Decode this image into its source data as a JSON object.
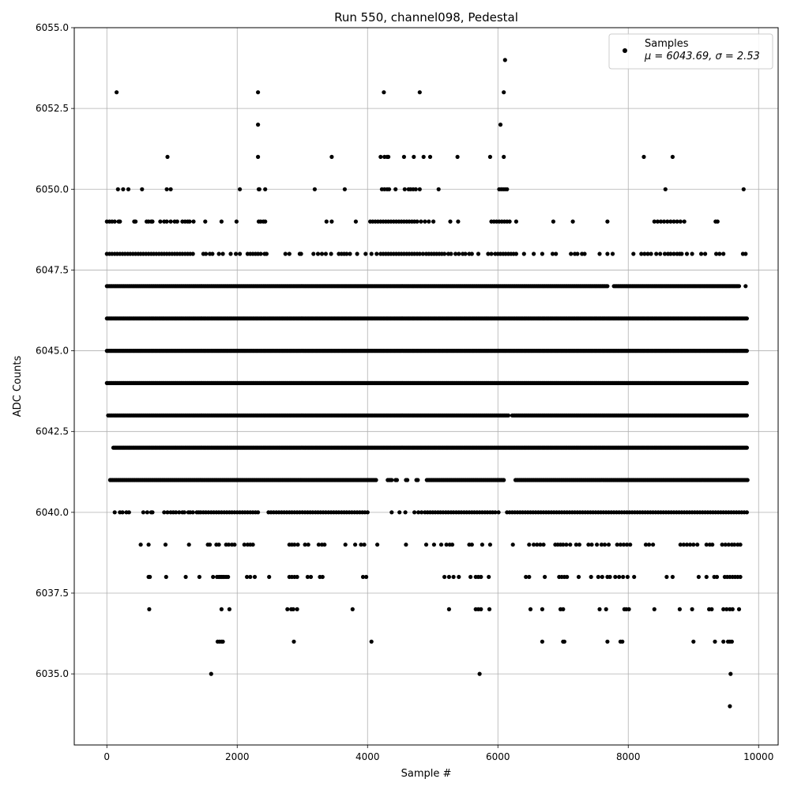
{
  "chart_data": {
    "type": "scatter",
    "title": "Run 550, channel098, Pedestal",
    "xlabel": "Sample #",
    "ylabel": "ADC Counts",
    "xlim": [
      -500,
      10300
    ],
    "ylim": [
      6032.8,
      6055.0
    ],
    "xticks": [
      0,
      2000,
      4000,
      6000,
      8000,
      10000
    ],
    "xtick_labels": [
      "0",
      "2000",
      "4000",
      "6000",
      "8000",
      "10000"
    ],
    "yticks": [
      6035.0,
      6037.5,
      6040.0,
      6042.5,
      6045.0,
      6047.5,
      6050.0,
      6052.5,
      6055.0
    ],
    "ytick_labels": [
      "6035.0",
      "6037.5",
      "6040.0",
      "6042.5",
      "6045.0",
      "6047.5",
      "6050.0",
      "6052.5",
      "6055.0"
    ],
    "grid": true,
    "marker_color": "#000000",
    "legend": {
      "position": "top-right",
      "entries": [
        {
          "marker": "dot",
          "line1": "Samples",
          "line2": "μ = 6043.69, σ = 2.53"
        }
      ]
    },
    "series": [
      {
        "name": "Samples",
        "bands": [
          {
            "y": 6034,
            "x": [
              9560
            ]
          },
          {
            "y": 6035,
            "x": [
              1600,
              5720,
              9570
            ]
          },
          {
            "y": 6036,
            "x": [
              1700,
              1730,
              1760,
              1780,
              2870,
              4060,
              6680,
              7000,
              7020,
              7680,
              7880,
              7910,
              9000,
              9330,
              9460,
              9530,
              9560,
              9590
            ]
          },
          {
            "y": 6037,
            "x": [
              650,
              1760,
              1880,
              2770,
              2830,
              2860,
              2920,
              3770,
              5250,
              5660,
              5700,
              5740,
              5870,
              6500,
              6680,
              6960,
              7000,
              7560,
              7660,
              7940,
              7970,
              8010,
              8400,
              8790,
              8980,
              9240,
              9280,
              9460,
              9510,
              9560,
              9600,
              9700
            ]
          },
          {
            "y": 6038,
            "x": [
              640,
              660,
              910,
              1210,
              1420,
              1630,
              1690,
              1720,
              1740,
              1760,
              1780,
              1800,
              1830,
              1860,
              2150,
              2200,
              2270,
              2490,
              2800,
              2840,
              2880,
              2920,
              3080,
              3130,
              3270,
              3310,
              3930,
              3980,
              5180,
              5250,
              5320,
              5400,
              5580,
              5660,
              5700,
              5740,
              5860,
              6430,
              6480,
              6720,
              6940,
              6980,
              7020,
              7060,
              7240,
              7430,
              7540,
              7600,
              7680,
              7720,
              7800,
              7860,
              7920,
              7990,
              8090,
              8590,
              8680,
              9080,
              9200,
              9320,
              9360,
              9480,
              9520,
              9560,
              9600,
              9640,
              9680,
              9720
            ]
          },
          {
            "y": 6039,
            "x": [
              520,
              640,
              900,
              1260,
              1550,
              1580,
              1680,
              1720,
              1830,
              1870,
              1920,
              1960,
              2110,
              2160,
              2200,
              2240,
              2800,
              2840,
              2880,
              2930,
              3040,
              3090,
              3250,
              3300,
              3340,
              3660,
              3810,
              3900,
              3950,
              4150,
              4590,
              4900,
              5020,
              5130,
              5210,
              5260,
              5300,
              5560,
              5600,
              5760,
              5880,
              6230,
              6480,
              6550,
              6600,
              6650,
              6700,
              6880,
              6920,
              6960,
              7000,
              7050,
              7110,
              7200,
              7250,
              7390,
              7440,
              7520,
              7590,
              7640,
              7700,
              7830,
              7880,
              7930,
              7980,
              8030,
              8270,
              8320,
              8380,
              8800,
              8850,
              8900,
              8950,
              9000,
              9060,
              9200,
              9250,
              9290,
              9440,
              9490,
              9540,
              9590,
              9630,
              9680,
              9720
            ]
          },
          {
            "y": 6040,
            "x": [
              120,
              200,
              240,
              300,
              340,
              560,
              620,
              680,
              700,
              880,
              930,
              980,
              1020,
              1060,
              1110,
              1160,
              1190,
              1250,
              1280,
              1320,
              1380,
              1410,
              1440,
              1480,
              1520,
              1560,
              1600,
              1640,
              1680,
              1720,
              1760,
              1800,
              1840,
              1880,
              1920,
              1960,
              2000,
              2040,
              2080,
              2120,
              2160,
              2200,
              2240,
              2280,
              2320,
              2480,
              2520,
              2560,
              2600,
              2640,
              2680,
              2720,
              2760,
              2800,
              2840,
              2880,
              2920,
              2960,
              3000,
              3040,
              3080,
              3120,
              3160,
              3200,
              3240,
              3280,
              3320,
              3360,
              3400,
              3440,
              3480,
              3520,
              3560,
              3600,
              3640,
              3680,
              3720,
              3760,
              3800,
              3840,
              3880,
              3920,
              3960,
              4000,
              4370,
              4490,
              4580,
              4720,
              4780,
              4830,
              4880,
              4920,
              4960,
              5000,
              5040,
              5080,
              5120,
              5160,
              5200,
              5240,
              5280,
              5320,
              5360,
              5400,
              5440,
              5480,
              5520,
              5560,
              5600,
              5640,
              5680,
              5720,
              5760,
              5800,
              5840,
              5880,
              5920,
              5960,
              6010,
              6140,
              6180,
              6220,
              6260,
              6300,
              6340,
              6380,
              6420,
              6460,
              6500,
              6540,
              6580,
              6620,
              6660,
              6700,
              6740,
              6780,
              6820,
              6860,
              6900,
              6940,
              6980,
              7020,
              7060,
              7100,
              7140,
              7180,
              7220,
              7260,
              7300,
              7340,
              7380,
              7420,
              7460,
              7500,
              7540,
              7580,
              7620,
              7660,
              7700,
              7740,
              7780,
              7820,
              7860,
              7900,
              7940,
              7980,
              8020,
              8060,
              8100,
              8140,
              8180,
              8220,
              8260,
              8300,
              8340,
              8380,
              8420,
              8460,
              8500,
              8540,
              8580,
              8620,
              8660,
              8700,
              8740,
              8780,
              8820,
              8860,
              8900,
              8940,
              8980,
              9020,
              9060,
              9100,
              9140,
              9180,
              9220,
              9260,
              9300,
              9340,
              9380,
              9420,
              9460,
              9500,
              9540,
              9580,
              9620,
              9660,
              9700,
              9740,
              9780,
              9820
            ]
          }
        ],
        "dense_bands": [
          {
            "y": 6041,
            "x_start": 50,
            "x_end": 9830,
            "gaps": [
              [
                4140,
                4300
              ],
              [
                4380,
                4420
              ],
              [
                4460,
                4580
              ],
              [
                4620,
                4740
              ],
              [
                4780,
                4890
              ],
              [
                6100,
                6260
              ]
            ]
          },
          {
            "y": 6042,
            "x_start": 100,
            "x_end": 9830,
            "gaps": []
          },
          {
            "y": 6043,
            "x_start": 20,
            "x_end": 9830,
            "gaps": [
              [
                6180,
                6210
              ]
            ]
          },
          {
            "y": 6044,
            "x_start": 0,
            "x_end": 9830,
            "gaps": []
          },
          {
            "y": 6045,
            "x_start": 0,
            "x_end": 9830,
            "gaps": []
          },
          {
            "y": 6046,
            "x_start": 0,
            "x_end": 9830,
            "gaps": []
          },
          {
            "y": 6047,
            "x_start": 0,
            "x_end": 9800,
            "gaps": [
              [
                7700,
                7760
              ],
              [
                9720,
                9780
              ]
            ]
          }
        ],
        "sparse_upper": [
          {
            "y": 6048,
            "x": [
              0,
              40,
              80,
              120,
              160,
              200,
              240,
              280,
              320,
              360,
              400,
              440,
              480,
              520,
              560,
              600,
              640,
              680,
              720,
              760,
              800,
              840,
              880,
              920,
              960,
              1000,
              1040,
              1080,
              1120,
              1160,
              1200,
              1240,
              1280,
              1320,
              1480,
              1520,
              1580,
              1620,
              1720,
              1780,
              1900,
              1980,
              2040,
              2160,
              2200,
              2240,
              2280,
              2320,
              2360,
              2420,
              2450,
              2740,
              2800,
              2960,
              2980,
              3170,
              3240,
              3300,
              3360,
              3440,
              3560,
              3600,
              3640,
              3680,
              3730,
              3840,
              3970,
              4060,
              4140,
              4200,
              4240,
              4280,
              4320,
              4360,
              4400,
              4440,
              4480,
              4520,
              4560,
              4600,
              4640,
              4680,
              4720,
              4760,
              4800,
              4850,
              4900,
              4940,
              4980,
              5020,
              5060,
              5100,
              5140,
              5180,
              5240,
              5280,
              5350,
              5400,
              5460,
              5500,
              5560,
              5600,
              5700,
              5850,
              5900,
              5960,
              6000,
              6040,
              6080,
              6120,
              6160,
              6200,
              6240,
              6280,
              6400,
              6550,
              6680,
              6840,
              6890,
              7120,
              7180,
              7220,
              7290,
              7330,
              7560,
              7680,
              7760,
              8080,
              8200,
              8250,
              8300,
              8350,
              8430,
              8490,
              8560,
              8610,
              8650,
              8700,
              8750,
              8790,
              8820,
              8900,
              8980,
              9120,
              9180,
              9350,
              9400,
              9460,
              9760,
              9800
            ]
          },
          {
            "y": 6049,
            "x": [
              0,
              40,
              80,
              120,
              180,
              200,
              420,
              440,
              610,
              640,
              680,
              700,
              820,
              880,
              920,
              980,
              1040,
              1080,
              1160,
              1200,
              1240,
              1270,
              1330,
              1510,
              1760,
              1990,
              2330,
              2360,
              2400,
              2430,
              3370,
              3450,
              3820,
              4040,
              4080,
              4120,
              4160,
              4200,
              4240,
              4280,
              4320,
              4360,
              4400,
              4440,
              4480,
              4520,
              4560,
              4600,
              4640,
              4680,
              4720,
              4760,
              4820,
              4880,
              4940,
              5010,
              5270,
              5390,
              5900,
              5940,
              5980,
              6020,
              6060,
              6100,
              6140,
              6180,
              6280,
              6850,
              7150,
              7680,
              8400,
              8450,
              8500,
              8550,
              8600,
              8650,
              8700,
              8750,
              8800,
              8860,
              9340,
              9370
            ]
          },
          {
            "y": 6050,
            "x": [
              170,
              250,
              330,
              540,
              920,
              980,
              2040,
              2330,
              2340,
              2430,
              3190,
              3650,
              4220,
              4260,
              4300,
              4330,
              4430,
              4570,
              4630,
              4660,
              4700,
              4740,
              4800,
              5090,
              6020,
              6050,
              6080,
              6110,
              6140,
              8570,
              9770
            ]
          },
          {
            "y": 6051,
            "x": [
              930,
              2320,
              3450,
              4200,
              4260,
              4300,
              4320,
              4560,
              4710,
              4860,
              4960,
              5380,
              5880,
              6090,
              8240,
              8680
            ]
          },
          {
            "y": 6052,
            "x": [
              2320,
              6040
            ]
          },
          {
            "y": 6053,
            "x": [
              150,
              2320,
              4250,
              4800,
              6090
            ]
          },
          {
            "y": 6054,
            "x": [
              6110
            ]
          }
        ]
      }
    ]
  }
}
